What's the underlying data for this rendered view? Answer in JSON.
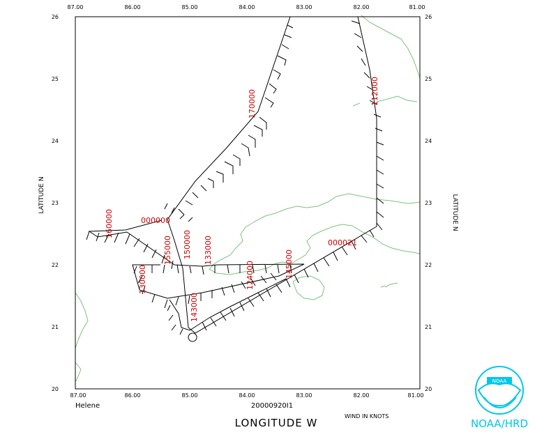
{
  "map": {
    "bounds": {
      "lon_min": -87,
      "lon_max": -81,
      "lat_min": 20,
      "lat_max": 26
    },
    "lon_ticks": [
      "87.00",
      "86.00",
      "85.00",
      "84.00",
      "83.00",
      "82.00",
      "81.00"
    ],
    "lat_ticks": [
      "26",
      "25",
      "24",
      "23",
      "22",
      "21",
      "20"
    ],
    "x_axis_title": "LONGITUDE  W",
    "y_axis_title_left": "LATITUDE  N",
    "y_axis_title_right": "LATITUDE  N",
    "storm_name": "Helene",
    "datetime": "20000920I1",
    "wind_units": "WIND IN KNOTS",
    "logo_text": "NOAA/HRD",
    "logo_inner_text": "NOAA",
    "colors": {
      "coastline": "#7dc27d",
      "track": "#000000",
      "label": "#cc0000",
      "logo": "#00c8e8"
    },
    "time_labels": [
      {
        "text": "170000"
      },
      {
        "text": "112000"
      },
      {
        "text": "000000"
      },
      {
        "text": "160000"
      },
      {
        "text": "155000"
      },
      {
        "text": "150000"
      },
      {
        "text": "133000"
      },
      {
        "text": "000021"
      },
      {
        "text": "130000"
      },
      {
        "text": "124000"
      },
      {
        "text": "145000"
      },
      {
        "text": "143000"
      }
    ]
  }
}
